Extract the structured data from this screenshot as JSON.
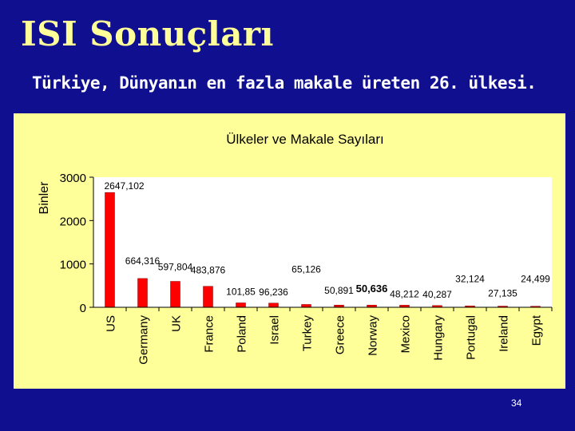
{
  "slide": {
    "title": "ISI Sonuçları",
    "subtitle": "Türkiye, Dünyanın en fazla makale üreten 26. ülkesi.",
    "page_number": "34"
  },
  "colors": {
    "background": "#0f0f8f",
    "title": "#ffff99",
    "subtitle": "#ffffff",
    "panel": "#ffff99",
    "plot_area": "#ffffff",
    "bar": "#ff0000"
  },
  "chart_data": {
    "type": "bar",
    "title": "Ülkeler ve Makale Sayıları",
    "ylabel": "Binler",
    "xlabel": "",
    "ylim": [
      0,
      3000
    ],
    "yticks": [
      "0",
      "1000",
      "2000",
      "3000"
    ],
    "grid": false,
    "legend": "none",
    "categories": [
      "US",
      "Germany",
      "UK",
      "France",
      "Poland",
      "Israel",
      "Turkey",
      "Greece",
      "Norway",
      "Mexico",
      "Hungary",
      "Portugal",
      "Ireland",
      "Egypt"
    ],
    "values": [
      2647.102,
      664.316,
      597.804,
      483.876,
      101.85,
      96.236,
      65.126,
      50.891,
      50.636,
      48.212,
      40.287,
      32.124,
      27.135,
      24.499
    ],
    "data_labels": [
      "2647,102",
      "664,316",
      "597,804",
      "483,876",
      "101,85",
      "96,236",
      "65,126",
      "50,891",
      "50,636",
      "48,212",
      "40,287",
      "32,124",
      "27,135",
      "24,499"
    ]
  }
}
